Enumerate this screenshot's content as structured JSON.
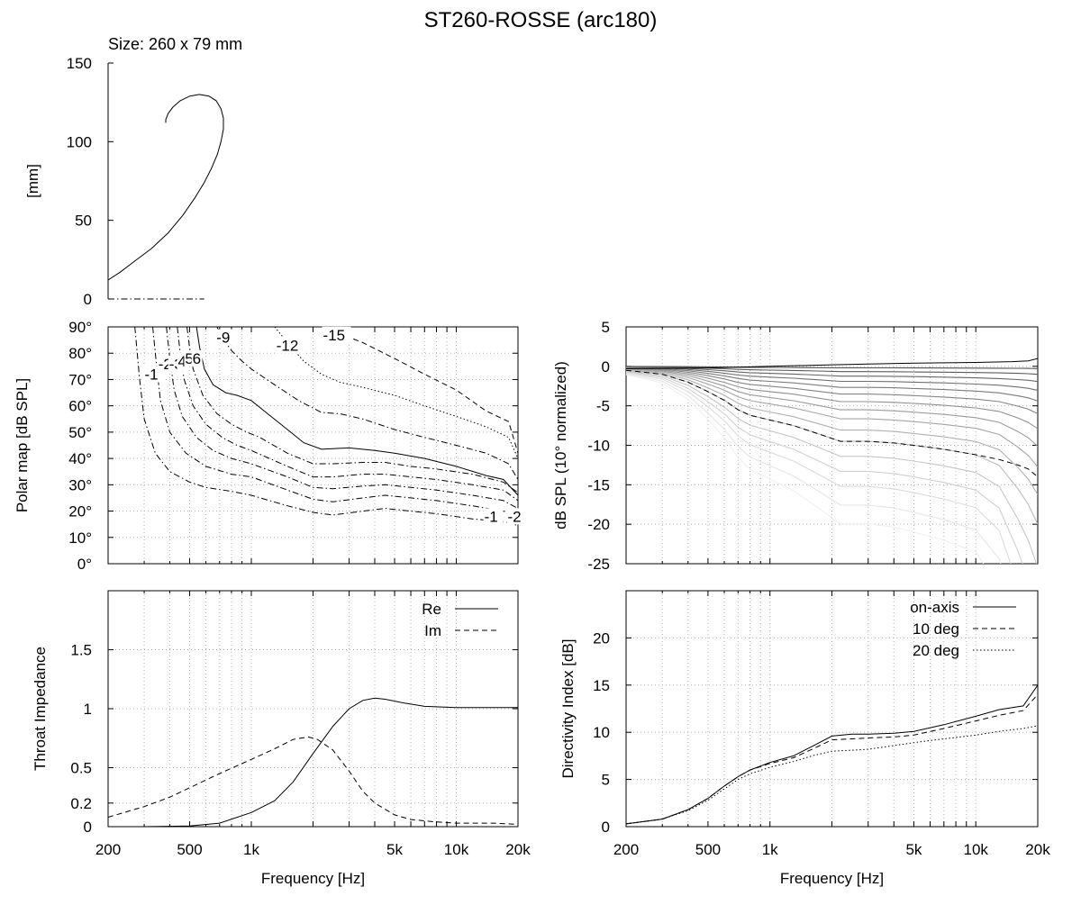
{
  "page": {
    "title": "ST260-ROSSE (arc180)",
    "size_label": "Size: 260 x 79 mm"
  },
  "colors": {
    "ink": "#000000",
    "grid": "#b3b3b3",
    "background": "#ffffff"
  },
  "chart_data": [
    {
      "id": "profile",
      "type": "line",
      "title": "",
      "xlabel": "",
      "ylabel": "[mm]",
      "ylim": [
        0,
        150
      ],
      "yticks": [
        0,
        50,
        100,
        150
      ],
      "grid": false,
      "series": [
        {
          "style": "solid",
          "x": [
            0,
            10,
            22,
            36,
            50,
            62,
            72,
            80,
            86,
            91,
            94,
            96,
            96,
            94,
            90,
            84,
            76,
            68,
            60,
            54,
            50,
            48,
            48
          ],
          "y": [
            12,
            17,
            24,
            32,
            42,
            53,
            64,
            74,
            83,
            92,
            100,
            108,
            115,
            121,
            126,
            129,
            130,
            129,
            126,
            122,
            118,
            114,
            112
          ]
        },
        {
          "style": "dashdot",
          "x": [
            0,
            80
          ],
          "y": [
            0,
            0
          ]
        }
      ]
    },
    {
      "id": "polar",
      "type": "line",
      "title": "",
      "xlabel": "",
      "ylabel": "Polar map [dB SPL]",
      "xscale": "log",
      "xlim": [
        200,
        20000
      ],
      "ylim": [
        0,
        90
      ],
      "yticks": [
        "0°",
        "10°",
        "20°",
        "30°",
        "40°",
        "50°",
        "60°",
        "70°",
        "80°",
        "90°"
      ],
      "grid": true,
      "annotations": [
        {
          "text": "-1",
          "x": 330,
          "y": 72
        },
        {
          "text": "-2",
          "x": 385,
          "y": 76
        },
        {
          "text": "-3",
          "x": 435,
          "y": 76
        },
        {
          "text": "4",
          "x": 480,
          "y": 77
        },
        {
          "text": "5",
          "x": 520,
          "y": 78
        },
        {
          "text": "6",
          "x": 565,
          "y": 78
        },
        {
          "text": "-9",
          "x": 740,
          "y": 86
        },
        {
          "text": "-12",
          "x": 1450,
          "y": 83
        },
        {
          "text": "-15",
          "x": 2450,
          "y": 87
        },
        {
          "text": "-1",
          "x": 15000,
          "y": 18
        },
        {
          "text": "-2",
          "x": 19500,
          "y": 18
        }
      ],
      "series": [
        {
          "contour": "-1",
          "style": "dashdot",
          "x": [
            270,
            285,
            300,
            340,
            400,
            500,
            600,
            800,
            1000,
            1500,
            2000,
            2500,
            3500,
            4500,
            6000,
            8000,
            12000,
            17000,
            20000
          ],
          "y": [
            90,
            70,
            55,
            42,
            35,
            31,
            29,
            27.5,
            26,
            22,
            19.5,
            18.5,
            20,
            21,
            20,
            19,
            17,
            16,
            14.5
          ]
        },
        {
          "contour": "-2",
          "style": "dashdot",
          "x": [
            330,
            345,
            360,
            400,
            480,
            600,
            800,
            1000,
            1500,
            2000,
            2500,
            3500,
            4500,
            6000,
            8000,
            12000,
            17000,
            20000
          ],
          "y": [
            90,
            75,
            62,
            50,
            42,
            37,
            34,
            33,
            28,
            24.5,
            23.5,
            25,
            26,
            25,
            24,
            22,
            20,
            18
          ]
        },
        {
          "contour": "-3",
          "style": "dashdot",
          "x": [
            385,
            400,
            420,
            460,
            540,
            650,
            800,
            1000,
            1500,
            2000,
            2500,
            3500,
            4500,
            6000,
            8000,
            12000,
            17000,
            20000
          ],
          "y": [
            90,
            78,
            66,
            56,
            48,
            43,
            40,
            38,
            33,
            29,
            28.5,
            29.5,
            30,
            29,
            28,
            26,
            24,
            21
          ]
        },
        {
          "contour": "4",
          "style": "dashdot",
          "x": [
            435,
            450,
            470,
            520,
            600,
            720,
            850,
            1000,
            1500,
            2000,
            2500,
            3500,
            4500,
            6000,
            8000,
            12000,
            17000,
            20000
          ],
          "y": [
            90,
            80,
            70,
            60,
            53,
            48,
            45,
            43,
            37,
            33,
            33,
            34,
            34,
            33,
            32,
            30,
            28,
            24
          ]
        },
        {
          "contour": "5",
          "style": "dashdot",
          "x": [
            485,
            500,
            520,
            580,
            680,
            800,
            950,
            1100,
            1500,
            2000,
            2500,
            3500,
            4500,
            6000,
            8000,
            12000,
            17000,
            20000
          ],
          "y": [
            90,
            82,
            74,
            64,
            57,
            53,
            50,
            48,
            42,
            38,
            38,
            38.5,
            38.5,
            37,
            36,
            34,
            31,
            27
          ]
        },
        {
          "contour": "6",
          "style": "solid-bold",
          "x": [
            540,
            560,
            590,
            650,
            750,
            850,
            1000,
            1200,
            1500,
            1800,
            2200,
            3000,
            4000,
            5000,
            7000,
            10000,
            14000,
            17000,
            20000
          ],
          "y": [
            90,
            82,
            74,
            68,
            65,
            64,
            62,
            57,
            51,
            46,
            43.5,
            44,
            43,
            42,
            40,
            37,
            33.5,
            32,
            26
          ]
        },
        {
          "contour": "-9",
          "style": "dashdot",
          "x": [
            680,
            720,
            800,
            900,
            1000,
            1300,
            1700,
            2200,
            2700,
            3500,
            5000,
            7000,
            10000,
            14000,
            18000,
            20000
          ],
          "y": [
            90,
            86,
            81,
            77,
            74,
            68,
            62,
            57.5,
            57,
            55,
            51,
            48,
            45,
            42,
            38,
            32
          ]
        },
        {
          "contour": "-12",
          "style": "dotted",
          "x": [
            1300,
            1500,
            1800,
            2200,
            2700,
            3500,
            5000,
            7000,
            10000,
            14000,
            18000,
            20000
          ],
          "y": [
            90,
            84,
            77,
            72,
            69,
            67,
            64,
            60,
            56,
            52,
            48,
            40
          ]
        },
        {
          "contour": "-15",
          "style": "dashed",
          "x": [
            2400,
            2800,
            3500,
            5000,
            7000,
            10000,
            14000,
            18000,
            20000
          ],
          "y": [
            90,
            87,
            84,
            78,
            72,
            66,
            58,
            54,
            42
          ]
        }
      ]
    },
    {
      "id": "normalized",
      "type": "line",
      "title": "",
      "xlabel": "",
      "ylabel": "dB SPL (10° normalized)",
      "xscale": "log",
      "xlim": [
        200,
        20000
      ],
      "ylim": [
        -25,
        5
      ],
      "yticks": [
        -25,
        -20,
        -15,
        -10,
        -5,
        0,
        5
      ],
      "grid": true,
      "series": [
        {
          "role": "on-axis",
          "style": "solid",
          "x": [
            200,
            500,
            1000,
            2000,
            3000,
            5000,
            10000,
            15000,
            18000,
            20000
          ],
          "y": [
            -0.3,
            -0.2,
            0,
            0.2,
            0.3,
            0.4,
            0.5,
            0.6,
            0.7,
            1.0
          ]
        },
        {
          "role": "highlighted",
          "style": "dashed-bold",
          "x": [
            200,
            300,
            400,
            500,
            600,
            700,
            800,
            1000,
            1300,
            1700,
            2200,
            3000,
            4000,
            5000,
            7000,
            10000,
            13000,
            16000,
            18000,
            20000
          ],
          "y": [
            -0.5,
            -1,
            -2,
            -3.2,
            -4.3,
            -5.5,
            -6.2,
            -6.8,
            -7.5,
            -8.5,
            -9.5,
            -9.5,
            -9.7,
            -10,
            -10.5,
            -11.2,
            -11.8,
            -12.5,
            -13,
            -14
          ]
        }
      ],
      "families": [
        {
          "k": [
            0.02,
            0.07,
            0.13,
            0.2,
            0.28,
            0.37,
            0.47,
            0.58,
            0.7,
            0.85,
            1.0,
            1.2,
            1.4,
            1.6,
            1.85,
            2.1
          ]
        }
      ]
    },
    {
      "id": "impedance",
      "type": "line",
      "title": "",
      "xlabel": "Frequency [Hz]",
      "ylabel": "Throat Impedance",
      "xscale": "log",
      "xlim": [
        200,
        20000
      ],
      "ylim": [
        0,
        2
      ],
      "yticks": [
        "0",
        "0.2",
        "0.5",
        "1",
        "1.5"
      ],
      "xticks": [
        "200",
        "500",
        "1k",
        "5k",
        "10k",
        "20k"
      ],
      "grid": true,
      "legend": {
        "position": "top-right",
        "entries": [
          "Re",
          "Im"
        ]
      },
      "series": [
        {
          "name": "Re",
          "style": "solid",
          "x": [
            200,
            300,
            500,
            700,
            1000,
            1300,
            1600,
            2000,
            2500,
            3000,
            3500,
            4000,
            4500,
            5500,
            7000,
            10000,
            15000,
            20000
          ],
          "y": [
            0,
            0,
            0.005,
            0.03,
            0.12,
            0.22,
            0.38,
            0.62,
            0.85,
            1.0,
            1.07,
            1.09,
            1.08,
            1.05,
            1.02,
            1.01,
            1.01,
            1.01
          ]
        },
        {
          "name": "Im",
          "style": "dashed",
          "x": [
            200,
            300,
            400,
            500,
            700,
            1000,
            1300,
            1600,
            1900,
            2100,
            2500,
            3000,
            3500,
            4000,
            5000,
            6000,
            8000,
            10000,
            15000,
            20000
          ],
          "y": [
            0.08,
            0.17,
            0.25,
            0.33,
            0.45,
            0.57,
            0.66,
            0.74,
            0.76,
            0.74,
            0.65,
            0.47,
            0.3,
            0.2,
            0.1,
            0.06,
            0.04,
            0.03,
            0.03,
            0.02
          ]
        }
      ]
    },
    {
      "id": "directivity",
      "type": "line",
      "title": "",
      "xlabel": "Frequency [Hz]",
      "ylabel": "Directivity Index [dB]",
      "xscale": "log",
      "xlim": [
        200,
        20000
      ],
      "ylim": [
        0,
        25
      ],
      "yticks": [
        0,
        5,
        10,
        15,
        20
      ],
      "xticks": [
        "200",
        "500",
        "1k",
        "5k",
        "10k",
        "20k"
      ],
      "grid": true,
      "legend": {
        "position": "top-right",
        "entries": [
          "on-axis",
          "10 deg",
          "20 deg"
        ]
      },
      "series": [
        {
          "name": "on-axis",
          "style": "solid",
          "x": [
            200,
            300,
            400,
            500,
            600,
            700,
            800,
            1000,
            1300,
            1600,
            2000,
            2500,
            3000,
            4000,
            5000,
            7000,
            10000,
            13000,
            17000,
            20000
          ],
          "y": [
            0.3,
            0.8,
            1.8,
            3.0,
            4.3,
            5.3,
            6.0,
            6.8,
            7.5,
            8.5,
            9.6,
            9.8,
            9.8,
            9.9,
            10.1,
            10.8,
            11.7,
            12.4,
            12.8,
            15.0
          ]
        },
        {
          "name": "10 deg",
          "style": "dashed",
          "x": [
            200,
            300,
            400,
            500,
            600,
            700,
            800,
            1000,
            1300,
            1600,
            2000,
            2500,
            3000,
            4000,
            5000,
            7000,
            10000,
            13000,
            17000,
            20000
          ],
          "y": [
            0.3,
            0.8,
            1.8,
            3.0,
            4.3,
            5.3,
            6.0,
            6.7,
            7.3,
            8.2,
            9.2,
            9.3,
            9.4,
            9.5,
            9.7,
            10.4,
            11.2,
            11.8,
            12.3,
            14.0
          ]
        },
        {
          "name": "20 deg",
          "style": "dotted",
          "x": [
            200,
            300,
            400,
            500,
            600,
            700,
            800,
            1000,
            1300,
            1600,
            2000,
            2500,
            3000,
            4000,
            5000,
            7000,
            10000,
            13000,
            17000,
            20000
          ],
          "y": [
            0.3,
            0.8,
            1.7,
            2.8,
            4.0,
            5.0,
            5.6,
            6.3,
            6.9,
            7.5,
            8.0,
            8.1,
            8.2,
            8.6,
            8.9,
            9.3,
            9.7,
            10.1,
            10.4,
            10.7
          ]
        }
      ]
    }
  ]
}
